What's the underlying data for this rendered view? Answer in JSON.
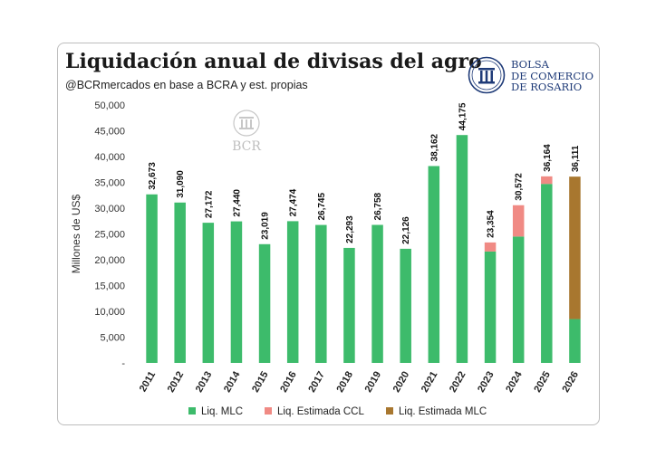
{
  "header": {
    "title": "Liquidación anual de divisas del agro",
    "subtitle": "@BCRmercados en base a BCRA y est. propias"
  },
  "logo": {
    "line1": "BOLSA",
    "line2": "DE COMERCIO",
    "line3": "DE ROSARIO",
    "color": "#1f3b78",
    "icon": "column-emblem-icon"
  },
  "watermark": {
    "label": "BCR"
  },
  "colors": {
    "mlc": "#3dbb6b",
    "ccl": "#f08a84",
    "est_mlc": "#a8772f"
  },
  "chart_data": {
    "type": "bar",
    "stacked": true,
    "categories": [
      "2011",
      "2012",
      "2013",
      "2014",
      "2015",
      "2016",
      "2017",
      "2018",
      "2019",
      "2020",
      "2021",
      "2022",
      "2023",
      "2024",
      "2025",
      "2026"
    ],
    "series": [
      {
        "name": "Liq. MLC",
        "color": "#3dbb6b",
        "values": [
          32673,
          31090,
          27172,
          27440,
          23019,
          27474,
          26745,
          22293,
          26758,
          22126,
          38162,
          44175,
          21600,
          24500,
          34700,
          8500
        ]
      },
      {
        "name": "Liq. Estimada CCL",
        "color": "#f08a84",
        "values": [
          0,
          0,
          0,
          0,
          0,
          0,
          0,
          0,
          0,
          0,
          0,
          0,
          1754,
          6072,
          1464,
          0
        ]
      },
      {
        "name": "Liq. Estimada MLC",
        "color": "#a8772f",
        "values": [
          0,
          0,
          0,
          0,
          0,
          0,
          0,
          0,
          0,
          0,
          0,
          0,
          0,
          0,
          0,
          27611
        ]
      }
    ],
    "totals": [
      "32,673",
      "31,090",
      "27,172",
      "27,440",
      "23,019",
      "27,474",
      "26,745",
      "22,293",
      "26,758",
      "22,126",
      "38,162",
      "44,175",
      "23,354",
      "30,572",
      "36,164",
      "36,111"
    ],
    "ylabel": "Millones de US$",
    "ylim": [
      0,
      50000
    ],
    "yticks": [
      "-",
      "5,000",
      "10,000",
      "15,000",
      "20,000",
      "25,000",
      "30,000",
      "35,000",
      "40,000",
      "45,000",
      "50,000"
    ],
    "grid": false,
    "legend_position": "bottom"
  }
}
